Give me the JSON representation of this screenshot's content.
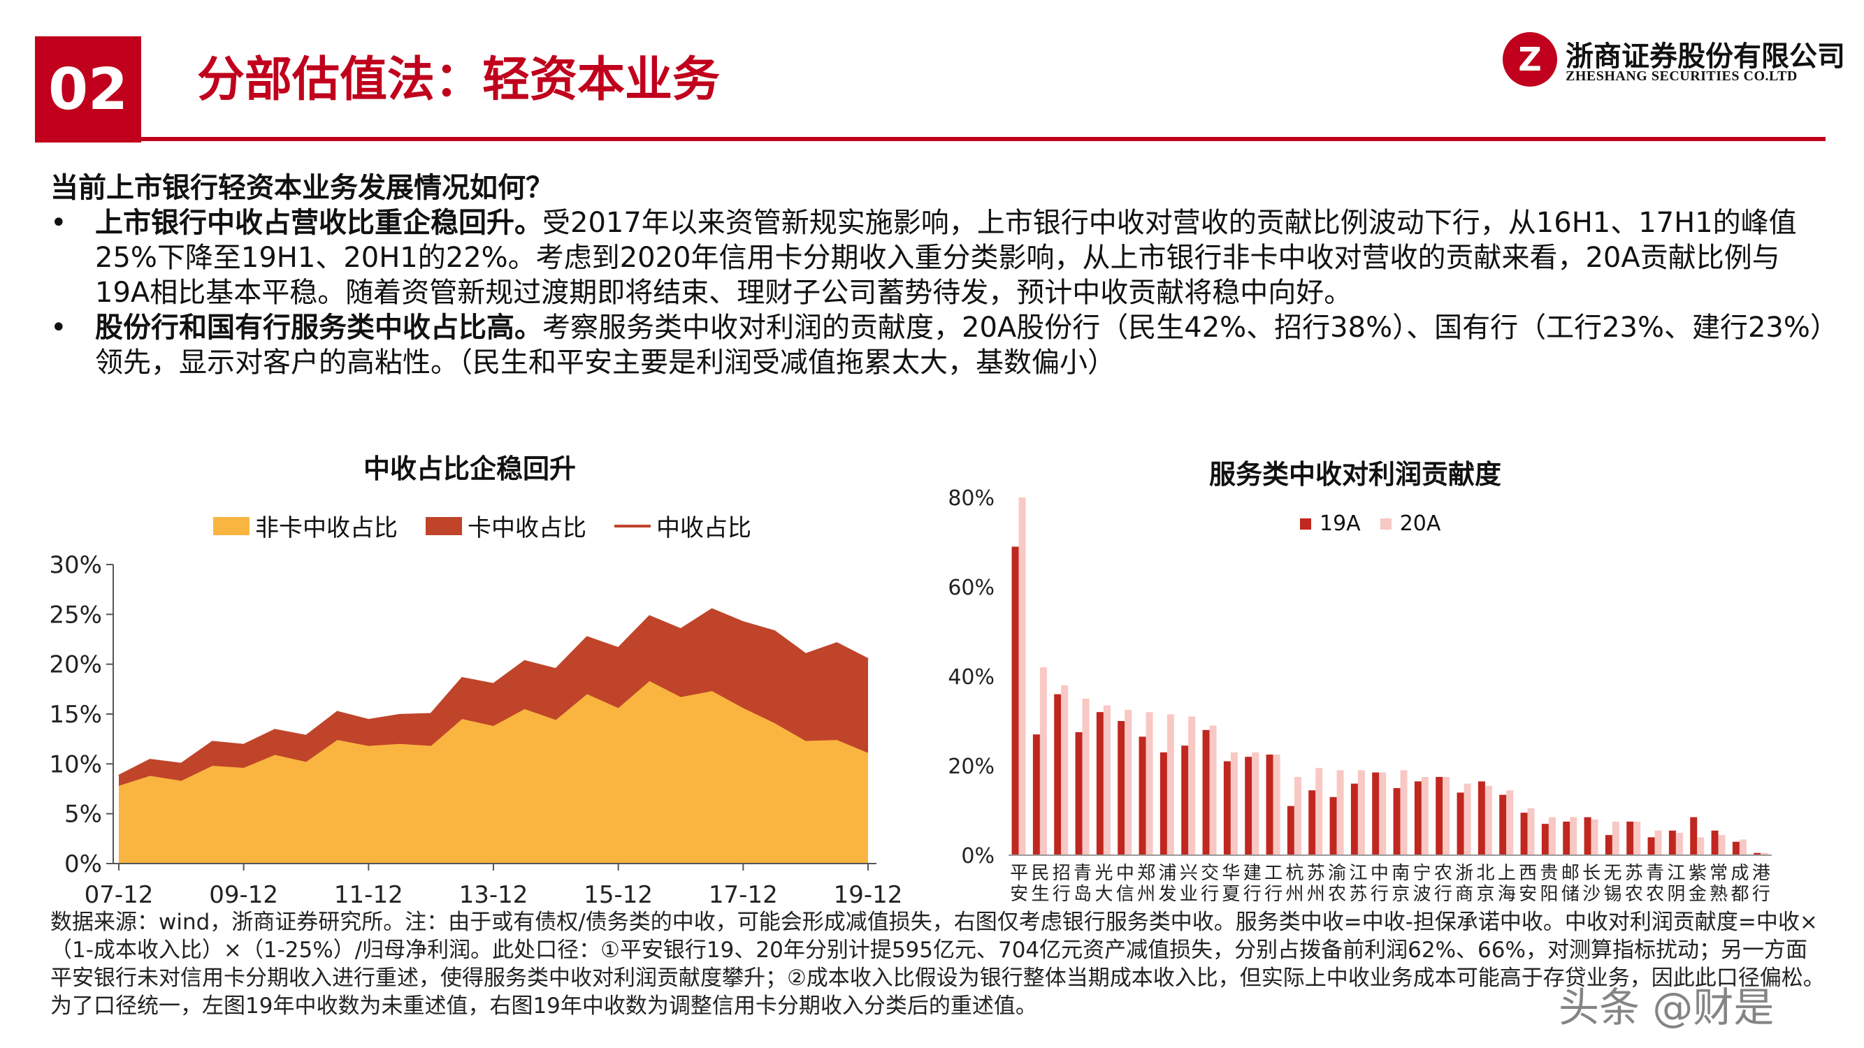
{
  "header": {
    "section_number": "02",
    "title": "分部估值法：轻资本业务",
    "brand_cn": "浙商证券股份有限公司",
    "brand_en": "ZHESHANG SECURITIES CO.LTD"
  },
  "body": {
    "question": "当前上市银行轻资本业务发展情况如何？",
    "bullet1_bold": "上市银行中收占营收比重企稳回升。",
    "bullet1_text": "受2017年以来资管新规实施影响，上市银行中收对营收的贡献比例波动下行，从16H1、17H1的峰值25%下降至19H1、20H1的22%。考虑到2020年信用卡分期收入重分类影响，从上市银行非卡中收对营收的贡献来看，20A贡献比例与19A相比基本平稳。随着资管新规过渡期即将结束、理财子公司蓄势待发，预计中收贡献将稳中向好。",
    "bullet2_bold": "股份行和国有行服务类中收占比高。",
    "bullet2_text": "考察服务类中收对利润的贡献度，20A股份行（民生42%、招行38%）、国有行（工行23%、建行23%）领先，显示对客户的高粘性。（民生和平安主要是利润受减值拖累太大，基数偏小）"
  },
  "footnote": "数据来源：wind，浙商证券研究所。注：由于或有债权/债务类的中收，可能会形成减值损失，右图仅考虑银行服务类中收。服务类中收=中收-担保承诺中收。中收对利润贡献度=中收×（1-成本收入比）×（1-25%）/归母净利润。此处口径：①平安银行19、20年分别计提595亿元、704亿元资产减值损失，分别占拨备前利润62%、66%，对测算指标扰动；另一方面平安银行未对信用卡分期收入进行重述，使得服务类中收对利润贡献度攀升；②成本收入比假设为银行整体当期成本收入比，但实际上中收业务成本可能高于存贷业务，因此此口径偏松。为了口径统一，左图19年中收数为未重述值，右图19年中收数为调整信用卡分期收入分类后的重述值。",
  "watermark": "头条 @财是",
  "colors": {
    "brand_red": "#c0001c",
    "non_card": "#f9b540",
    "card": "#c0442a",
    "total_line": "#c0442a",
    "bar_19a": "#c0271f",
    "bar_20a": "#f8c8c4"
  },
  "chart_data": [
    {
      "type": "area",
      "title": "中收占比企稳回升",
      "legend_position": "top",
      "series_names": [
        "非卡中收占比",
        "卡中收占比",
        "中收占比"
      ],
      "x": [
        "07-12",
        "08-06",
        "08-12",
        "09-06",
        "09-12",
        "10-06",
        "10-12",
        "11-06",
        "11-12",
        "12-06",
        "12-12",
        "13-06",
        "13-12",
        "14-06",
        "14-12",
        "15-06",
        "15-12",
        "16-06",
        "16-12",
        "17-06",
        "17-12",
        "18-06",
        "18-12",
        "19-06",
        "19-12"
      ],
      "x_tick_labels": [
        "07-12",
        "09-12",
        "11-12",
        "13-12",
        "15-12",
        "17-12",
        "19-12"
      ],
      "series": [
        {
          "name": "非卡中收占比",
          "values": [
            7.8,
            8.8,
            8.3,
            9.8,
            9.6,
            10.9,
            10.2,
            12.4,
            11.8,
            12.0,
            11.8,
            14.5,
            13.8,
            15.5,
            14.4,
            17.0,
            15.6,
            18.3,
            16.7,
            17.3,
            15.6,
            14.1,
            12.3,
            12.4,
            11.1
          ]
        },
        {
          "name": "卡中收占比",
          "values": [
            1.0,
            1.6,
            1.7,
            2.4,
            2.3,
            2.5,
            2.6,
            2.8,
            2.6,
            2.9,
            3.2,
            4.1,
            4.2,
            4.8,
            5.1,
            5.7,
            6.0,
            6.5,
            6.8,
            8.2,
            8.6,
            9.2,
            8.7,
            9.7,
            9.4
          ]
        },
        {
          "name": "中收占比",
          "values": [
            8.8,
            10.4,
            10.0,
            12.2,
            11.9,
            13.4,
            12.8,
            15.2,
            14.4,
            14.9,
            15.0,
            18.6,
            18.0,
            20.3,
            19.5,
            22.7,
            21.6,
            24.8,
            23.5,
            25.5,
            24.2,
            23.3,
            21.0,
            22.1,
            20.5
          ]
        }
      ],
      "y_ticks": [
        "0%",
        "5%",
        "10%",
        "15%",
        "20%",
        "25%",
        "30%"
      ],
      "ylim": [
        0,
        30
      ],
      "xlabel": "",
      "ylabel": "",
      "grid": false
    },
    {
      "type": "bar",
      "title": "服务类中收对利润贡献度",
      "legend_position": "top",
      "categories": [
        "平安",
        "民生",
        "招行",
        "青岛",
        "光大",
        "中信",
        "郑州",
        "浦发",
        "兴业",
        "交行",
        "华夏",
        "建行",
        "工行",
        "杭州",
        "苏州",
        "渝农",
        "江苏",
        "中行",
        "南京",
        "宁波",
        "农行",
        "浙商",
        "北京",
        "上海",
        "西安",
        "贵阳",
        "邮储",
        "长沙",
        "无锡",
        "苏农",
        "青农",
        "江阴",
        "紫金",
        "常熟",
        "成都",
        "港行"
      ],
      "series": [
        {
          "name": "19A",
          "values": [
            69,
            27,
            36,
            27.5,
            32,
            30,
            26.5,
            23,
            24.5,
            28,
            21,
            22,
            22.5,
            11,
            14.5,
            13,
            16,
            18.5,
            15,
            16.5,
            17.5,
            14,
            16.5,
            13.5,
            9.5,
            7,
            7.5,
            8.5,
            4.5,
            7.5,
            4,
            5.5,
            8.5,
            5.5,
            3,
            0.5
          ]
        },
        {
          "name": "20A",
          "values": [
            80,
            42,
            38,
            35,
            33.5,
            32.5,
            32,
            31.5,
            31,
            29,
            23,
            23,
            22.5,
            17.5,
            19.5,
            19,
            19,
            18.5,
            19,
            17.5,
            17.5,
            16,
            15.5,
            14.5,
            10.5,
            8.5,
            8.5,
            8,
            7.5,
            7.5,
            5.5,
            5,
            4,
            4.5,
            3.5,
            0.5
          ]
        }
      ],
      "y_ticks": [
        "0%",
        "20%",
        "40%",
        "60%",
        "80%"
      ],
      "ylim": [
        0,
        80
      ],
      "xlabel": "",
      "ylabel": "",
      "grid": false
    }
  ]
}
